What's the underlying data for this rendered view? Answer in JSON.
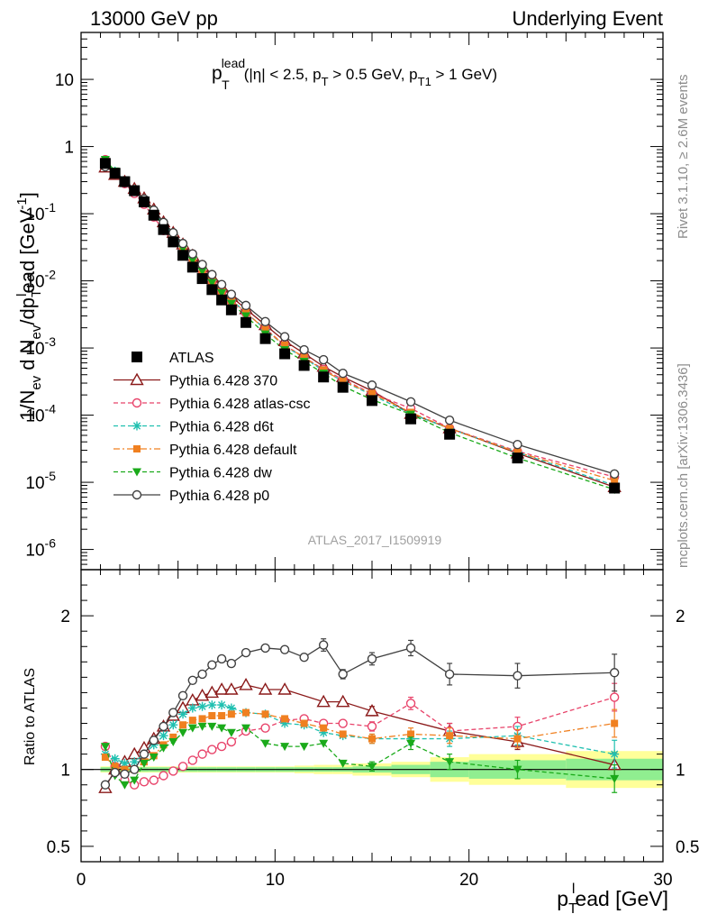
{
  "header": {
    "left": "13000 GeV pp",
    "right": "Underlying Event"
  },
  "side_labels": {
    "rivet": "Rivet 3.1.10, ≥ 2.6M events",
    "mcplots": "mcplots.cern.ch [arXiv:1306.3436]"
  },
  "analysis_id": "ATLAS_2017_I1509919",
  "chart_data": [
    {
      "type": "scatter",
      "panel": "main",
      "annotation": "p_T^lead (|η| < 2.5, p_T > 0.5 GeV, p_T1 > 1 GeV)",
      "annotation_parts": {
        "p": "p",
        "sub": "T",
        "sup": "lead",
        "rest": "(|η| < 2.5, p",
        "sub2": "T",
        "rest2": " > 0.5 GeV, p",
        "sub3": "T1",
        "rest3": " > 1 GeV)"
      },
      "ylabel_parts": {
        "a": "1/N",
        "a_sub": "ev",
        "b": " d N",
        "b_sub": "ev",
        "c": "/dp",
        "c_sub": "T",
        "c_sup": "l",
        "d": "ead [GeV",
        "d_sup": "-1",
        "e": "]"
      },
      "yscale": "log",
      "ylim": [
        5e-07,
        50
      ],
      "xlim": [
        0,
        30
      ],
      "yticks": [
        {
          "v": 1e-06,
          "m": "10",
          "e": "-6"
        },
        {
          "v": 1e-05,
          "m": "10",
          "e": "-5"
        },
        {
          "v": 0.0001,
          "m": "10",
          "e": "-4"
        },
        {
          "v": 0.001,
          "m": "10",
          "e": "-3"
        },
        {
          "v": 0.01,
          "m": "10",
          "e": "-2"
        },
        {
          "v": 0.1,
          "m": "10",
          "e": "-1"
        },
        {
          "v": 1,
          "m": "1",
          "e": ""
        },
        {
          "v": 10,
          "m": "10",
          "e": ""
        }
      ],
      "x": [
        1.25,
        1.75,
        2.25,
        2.75,
        3.25,
        3.75,
        4.25,
        4.75,
        5.25,
        5.75,
        6.25,
        6.75,
        7.25,
        7.75,
        8.5,
        9.5,
        10.5,
        11.5,
        12.5,
        13.5,
        15,
        17,
        19,
        22.5,
        27.5
      ],
      "legend_position": "middle-left",
      "series": [
        {
          "name": "ATLAS",
          "color": "#000000",
          "marker": "square-filled",
          "values": [
            0.56,
            0.4,
            0.3,
            0.22,
            0.15,
            0.095,
            0.058,
            0.038,
            0.024,
            0.016,
            0.0108,
            0.0074,
            0.0052,
            0.0037,
            0.0024,
            0.00138,
            0.00082,
            0.00055,
            0.00037,
            0.00026,
            0.000165,
            8.8e-05,
            5.2e-05,
            2.3e-05,
            8.2e-06
          ]
        },
        {
          "name": "Pythia 6.428 370",
          "color": "#8b1a1a",
          "marker": "triangle-open",
          "line": "solid",
          "values": [
            0.49,
            0.38,
            0.3,
            0.235,
            0.17,
            0.116,
            0.075,
            0.052,
            0.035,
            0.0238,
            0.0163,
            0.0114,
            0.0081,
            0.0058,
            0.0038,
            0.0022,
            0.00127,
            0.00083,
            0.00053,
            0.00037,
            0.00023,
            0.000105,
            6.4e-05,
            2.7e-05,
            8.5e-06
          ]
        },
        {
          "name": "Pythia 6.428 atlas-csc",
          "color": "#e8436a",
          "marker": "circle-open",
          "line": "dashed",
          "values": [
            0.64,
            0.41,
            0.28,
            0.2,
            0.138,
            0.089,
            0.056,
            0.038,
            0.026,
            0.018,
            0.0128,
            0.0092,
            0.0067,
            0.0049,
            0.0033,
            0.00195,
            0.0011,
            0.00073,
            0.00048,
            0.00034,
            0.00021,
            0.000126,
            6.4e-05,
            2.9e-05,
            1.2e-05
          ]
        },
        {
          "name": "Pythia 6.428 d6t",
          "color": "#20c0b0",
          "marker": "asterisk",
          "line": "dashed",
          "values": [
            0.62,
            0.43,
            0.31,
            0.23,
            0.165,
            0.11,
            0.071,
            0.049,
            0.033,
            0.0224,
            0.0152,
            0.0105,
            0.0074,
            0.0052,
            0.0034,
            0.00188,
            0.00107,
            0.00071,
            0.00046,
            0.00032,
            0.0002,
            0.000105,
            6.3e-05,
            2.8e-05,
            9e-06
          ]
        },
        {
          "name": "Pythia 6.428 default",
          "color": "#f08020",
          "marker": "square-filled-small",
          "line": "dashdot",
          "values": [
            0.6,
            0.41,
            0.3,
            0.22,
            0.157,
            0.104,
            0.067,
            0.046,
            0.031,
            0.0211,
            0.0144,
            0.01,
            0.0071,
            0.0051,
            0.0034,
            0.00188,
            0.0011,
            0.00072,
            0.00047,
            0.00032,
            0.00021,
            0.00011,
            6.3e-05,
            2.8e-05,
            1.06e-05
          ]
        },
        {
          "name": "Pythia 6.428 dw",
          "color": "#1aaa1a",
          "marker": "triangle-down-filled",
          "line": "dashed",
          "values": [
            0.64,
            0.43,
            0.3,
            0.22,
            0.157,
            0.103,
            0.066,
            0.045,
            0.03,
            0.0203,
            0.0139,
            0.0094,
            0.0066,
            0.0046,
            0.003,
            0.00161,
            0.00094,
            0.00063,
            0.00042,
            0.00027,
            0.00017,
            0.000103,
            5.5e-05,
            2.3e-05,
            7.8e-06
          ]
        },
        {
          "name": "Pythia 6.428 p0",
          "color": "#404040",
          "marker": "circle-open",
          "line": "solid",
          "values": [
            0.5,
            0.39,
            0.29,
            0.22,
            0.165,
            0.113,
            0.074,
            0.052,
            0.036,
            0.0252,
            0.0175,
            0.0124,
            0.0088,
            0.0063,
            0.0043,
            0.00247,
            0.00147,
            0.00094,
            0.00067,
            0.00042,
            0.00028,
            0.000158,
            8.4e-05,
            3.65e-05,
            1.33e-05
          ]
        }
      ]
    },
    {
      "type": "line",
      "panel": "ratio",
      "ylabel": "Ratio to ATLAS",
      "ylim": [
        0.4,
        2.3
      ],
      "xlim": [
        0,
        30
      ],
      "yticks": [
        {
          "v": 0.5,
          "label": "0.5"
        },
        {
          "v": 1,
          "label": "1"
        },
        {
          "v": 2,
          "label": "2"
        }
      ],
      "xticks": [
        {
          "v": 0,
          "label": "0"
        },
        {
          "v": 10,
          "label": "10"
        },
        {
          "v": 20,
          "label": "20"
        },
        {
          "v": 30,
          "label": "30"
        }
      ],
      "xlabel_parts": {
        "p": "p",
        "sub": "T",
        "sup": "l",
        "rest": "ead [GeV]"
      },
      "x": [
        1.25,
        1.75,
        2.25,
        2.75,
        3.25,
        3.75,
        4.25,
        4.75,
        5.25,
        5.75,
        6.25,
        6.75,
        7.25,
        7.75,
        8.5,
        9.5,
        10.5,
        11.5,
        12.5,
        13.5,
        15,
        17,
        19,
        22.5,
        27.5
      ],
      "bin_edges": [
        1,
        1.5,
        2,
        2.5,
        3,
        3.5,
        4,
        4.5,
        5,
        5.5,
        6,
        6.5,
        7,
        7.5,
        8,
        9,
        10,
        11,
        12,
        13,
        14,
        16,
        18,
        20,
        25,
        30
      ],
      "band_inner": [
        0.015,
        0.015,
        0.015,
        0.015,
        0.015,
        0.015,
        0.015,
        0.015,
        0.015,
        0.015,
        0.015,
        0.015,
        0.015,
        0.015,
        0.015,
        0.015,
        0.015,
        0.015,
        0.015,
        0.015,
        0.02,
        0.03,
        0.05,
        0.06,
        0.07
      ],
      "band_outer": [
        0.02,
        0.02,
        0.02,
        0.02,
        0.02,
        0.02,
        0.02,
        0.02,
        0.02,
        0.02,
        0.02,
        0.02,
        0.02,
        0.02,
        0.02,
        0.02,
        0.02,
        0.025,
        0.03,
        0.03,
        0.04,
        0.05,
        0.08,
        0.1,
        0.12
      ],
      "series": [
        {
          "name": "Pythia 6.428 370",
          "color": "#8b1a1a",
          "values": [
            0.88,
            1.0,
            1.05,
            1.1,
            1.14,
            1.2,
            1.28,
            1.35,
            1.4,
            1.45,
            1.48,
            1.5,
            1.52,
            1.52,
            1.55,
            1.52,
            1.52,
            null,
            1.44,
            1.44,
            1.38,
            null,
            1.25,
            1.18,
            1.03
          ],
          "err": [
            0,
            0,
            0,
            0,
            0,
            0,
            0,
            0,
            0,
            0,
            0,
            0,
            0,
            0,
            0,
            0,
            0,
            0,
            0,
            0,
            0.03,
            0,
            0.05,
            0.05,
            0.08
          ]
        },
        {
          "name": "Pythia 6.428 atlas-csc",
          "color": "#e8436a",
          "values": [
            1.15,
            1.02,
            0.93,
            0.9,
            0.92,
            0.93,
            0.96,
            0.99,
            1.02,
            1.06,
            1.1,
            1.13,
            1.15,
            1.18,
            1.25,
            1.27,
            1.32,
            1.33,
            1.3,
            1.3,
            1.28,
            1.43,
            1.25,
            1.28,
            1.47
          ],
          "err": [
            0,
            0,
            0,
            0,
            0,
            0,
            0,
            0,
            0,
            0,
            0,
            0,
            0,
            0,
            0,
            0,
            0,
            0,
            0,
            0,
            0.03,
            0.04,
            0.05,
            0.06,
            0.09
          ]
        },
        {
          "name": "Pythia 6.428 d6t",
          "color": "#20c0b0",
          "values": [
            1.1,
            1.07,
            1.04,
            1.05,
            1.1,
            1.16,
            1.22,
            1.29,
            1.36,
            1.4,
            1.41,
            1.42,
            1.42,
            1.4,
            1.37,
            1.36,
            1.3,
            1.29,
            1.24,
            1.22,
            1.2,
            1.2,
            1.2,
            1.22,
            1.1
          ],
          "err": [
            0,
            0,
            0,
            0,
            0,
            0,
            0,
            0,
            0,
            0,
            0,
            0,
            0,
            0,
            0,
            0,
            0,
            0,
            0,
            0,
            0.03,
            0.04,
            0.05,
            0.06,
            0.09
          ]
        },
        {
          "name": "Pythia 6.428 default",
          "color": "#f08020",
          "values": [
            1.08,
            1.02,
            1.0,
            1.0,
            1.05,
            1.09,
            1.16,
            1.21,
            1.29,
            1.32,
            1.33,
            1.35,
            1.35,
            1.36,
            1.37,
            1.36,
            1.33,
            1.3,
            1.27,
            1.23,
            1.2,
            1.23,
            1.22,
            1.2,
            1.3
          ],
          "err": [
            0,
            0,
            0,
            0,
            0,
            0,
            0,
            0,
            0,
            0,
            0,
            0,
            0,
            0,
            0,
            0,
            0,
            0,
            0,
            0,
            0.03,
            0.04,
            0.05,
            0.06,
            0.09
          ]
        },
        {
          "name": "Pythia 6.428 dw",
          "color": "#1aaa1a",
          "values": [
            1.15,
            0.96,
            0.9,
            0.93,
            1.04,
            1.08,
            1.14,
            1.18,
            1.24,
            1.27,
            1.28,
            1.28,
            1.27,
            1.24,
            1.27,
            1.17,
            1.15,
            1.15,
            1.17,
            1.04,
            1.02,
            1.17,
            1.05,
            1.0,
            0.94
          ],
          "err": [
            0,
            0,
            0,
            0,
            0,
            0,
            0,
            0,
            0,
            0,
            0,
            0,
            0,
            0,
            0,
            0,
            0,
            0,
            0,
            0,
            0.03,
            0.04,
            0.05,
            0.06,
            0.09
          ]
        },
        {
          "name": "Pythia 6.428 p0",
          "color": "#404040",
          "values": [
            0.9,
            0.98,
            0.97,
            1.0,
            1.1,
            1.19,
            1.28,
            1.37,
            1.48,
            1.58,
            1.62,
            1.68,
            1.72,
            1.69,
            1.76,
            1.79,
            1.78,
            1.73,
            1.81,
            1.62,
            1.72,
            1.79,
            1.62,
            1.61,
            1.63
          ],
          "err": [
            0,
            0,
            0,
            0,
            0,
            0,
            0,
            0,
            0,
            0,
            0,
            0,
            0,
            0,
            0,
            0,
            0,
            0,
            0.04,
            0.03,
            0.04,
            0.05,
            0.07,
            0.08,
            0.12
          ]
        }
      ]
    }
  ]
}
